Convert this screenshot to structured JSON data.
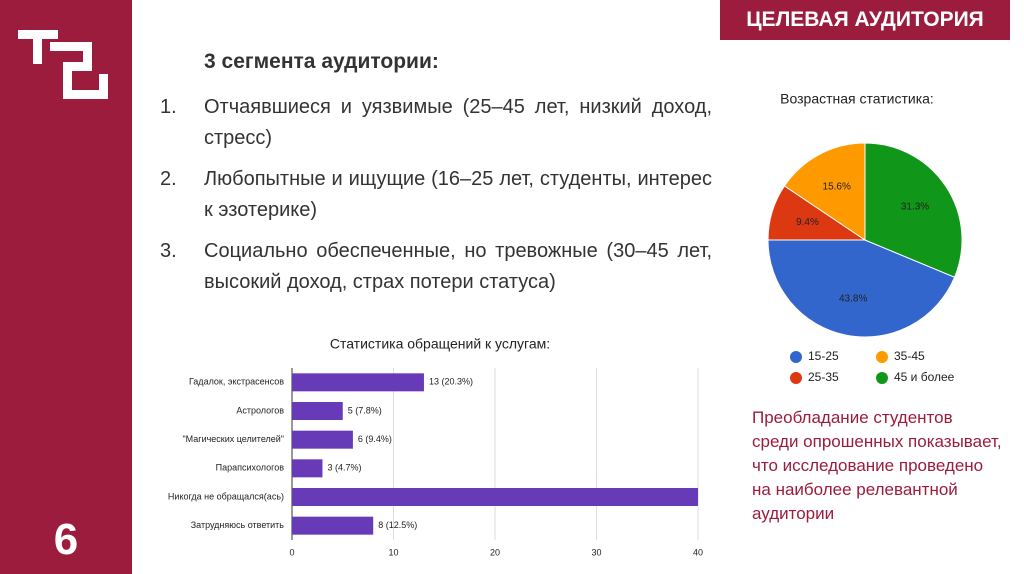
{
  "header": {
    "title": "ЦЕЛЕВАЯ АУДИТОРИЯ",
    "page_number": "6"
  },
  "segments": {
    "title": "3 сегмента аудитории:",
    "items": [
      {
        "number": "1.",
        "text": "Отчаявшиеся и уязвимые (25–45 лет, низкий доход, стресс)"
      },
      {
        "number": "2.",
        "text": "Любопытные и ищущие (16–25 лет, студенты, интерес к эзотерике)"
      },
      {
        "number": "3.",
        "text": "Социально обеспеченные, но тревожные (30–45 лет, высокий доход, страх потери статуса)"
      }
    ]
  },
  "conclusion": "Преобладание студентов среди опрошенных показывает, что исследование проведено на наиболее релевантной аудитории",
  "chart_data": [
    {
      "type": "bar",
      "orientation": "horizontal",
      "title": "Статистика обращений к услугам:",
      "categories": [
        "Гадалок, экстрасенсов",
        "Астрологов",
        "\"Магических целителей\"",
        "Парапсихологов",
        "Никогда не обращался(ась)",
        "Затрудняюсь ответить"
      ],
      "values": [
        13,
        5,
        6,
        3,
        40,
        8
      ],
      "value_labels": [
        "13 (20.3%)",
        "5 (7.8%)",
        "6 (9.4%)",
        "3 (4.7%)",
        null,
        "8 (12.5%)"
      ],
      "color": "#673ab7",
      "xlim": [
        0,
        40
      ],
      "xticks": [
        0,
        10,
        20,
        30,
        40
      ],
      "grid": true
    },
    {
      "type": "pie",
      "title": "Возрастная статистика:",
      "categories": [
        "15-25",
        "25-35",
        "35-45",
        "45 и более"
      ],
      "values": [
        43.8,
        9.4,
        15.6,
        31.3
      ],
      "value_labels": [
        "43.8%",
        "9.4%",
        "15.6%",
        "31.3%"
      ],
      "colors": [
        "#3366cc",
        "#dc3912",
        "#ff9900",
        "#109618"
      ]
    }
  ]
}
